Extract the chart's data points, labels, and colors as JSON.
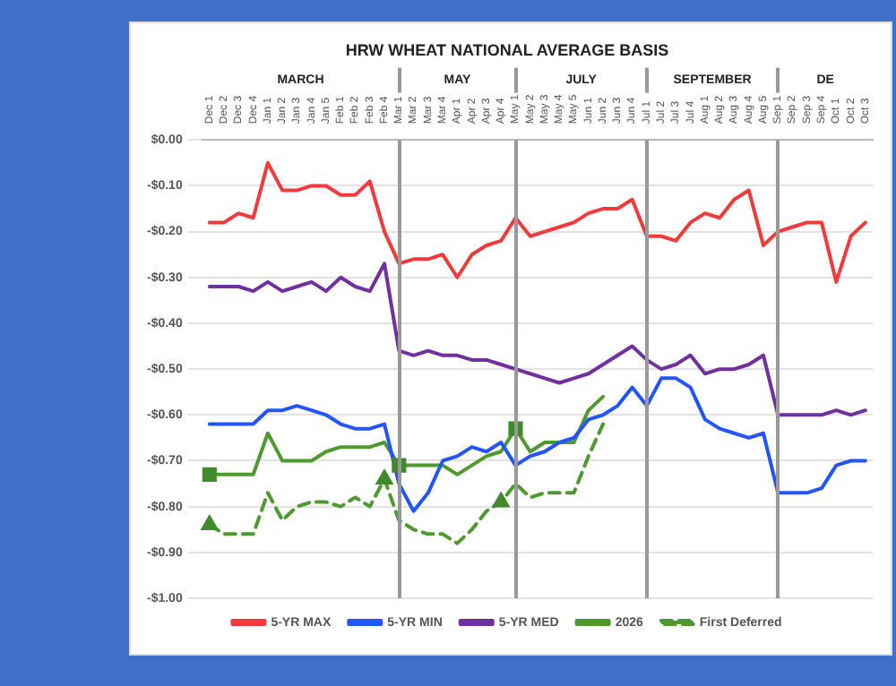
{
  "chart_data": {
    "type": "line",
    "title": "HRW WHEAT NATIONAL AVERAGE BASIS",
    "categories": [
      "Dec 1",
      "Dec 2",
      "Dec 3",
      "Dec 4",
      "Jan 1",
      "Jan 2",
      "Jan 3",
      "Jan 4",
      "Jan 5",
      "Feb 1",
      "Feb 2",
      "Feb 3",
      "Feb 4",
      "Mar 1",
      "Mar 2",
      "Mar 3",
      "Mar 4",
      "Apr 1",
      "Apr 2",
      "Apr 3",
      "Apr 4",
      "May 1",
      "May 2",
      "May 3",
      "May 4",
      "May 5",
      "Jun 1",
      "Jun 2",
      "Jun 3",
      "Jun 4",
      "Jul 1",
      "Jul 2",
      "Jul 3",
      "Jul 4",
      "Aug 1",
      "Aug 2",
      "Aug 3",
      "Aug 4",
      "Aug 5",
      "Sep 1",
      "Sep 2",
      "Sep 3",
      "Sep 4",
      "Oct 1",
      "Oct 2",
      "Oct 3"
    ],
    "series": [
      {
        "name": "5-YR MAX",
        "color": "#f23a3a",
        "values": [
          -0.18,
          -0.18,
          -0.16,
          -0.17,
          -0.05,
          -0.11,
          -0.11,
          -0.1,
          -0.1,
          -0.12,
          -0.12,
          -0.09,
          -0.2,
          -0.27,
          -0.26,
          -0.26,
          -0.25,
          -0.3,
          -0.25,
          -0.23,
          -0.22,
          -0.17,
          -0.21,
          -0.2,
          -0.19,
          -0.18,
          -0.16,
          -0.15,
          -0.15,
          -0.13,
          -0.21,
          -0.21,
          -0.22,
          -0.18,
          -0.16,
          -0.17,
          -0.13,
          -0.11,
          -0.23,
          -0.2,
          -0.19,
          -0.18,
          -0.18,
          -0.31,
          -0.21,
          -0.18
        ]
      },
      {
        "name": "5-YR MIN",
        "color": "#2255ff",
        "values": [
          -0.62,
          -0.62,
          -0.62,
          -0.62,
          -0.59,
          -0.59,
          -0.58,
          -0.59,
          -0.6,
          -0.62,
          -0.63,
          -0.63,
          -0.62,
          -0.75,
          -0.81,
          -0.77,
          -0.7,
          -0.69,
          -0.67,
          -0.68,
          -0.66,
          -0.71,
          -0.69,
          -0.68,
          -0.66,
          -0.65,
          -0.61,
          -0.6,
          -0.58,
          -0.54,
          -0.58,
          -0.52,
          -0.52,
          -0.54,
          -0.61,
          -0.63,
          -0.64,
          -0.65,
          -0.64,
          -0.77,
          -0.77,
          -0.77,
          -0.76,
          -0.71,
          -0.7,
          -0.7
        ]
      },
      {
        "name": "5-YR MED",
        "color": "#7030a0",
        "values": [
          -0.32,
          -0.32,
          -0.32,
          -0.33,
          -0.31,
          -0.33,
          -0.32,
          -0.31,
          -0.33,
          -0.3,
          -0.32,
          -0.33,
          -0.27,
          -0.46,
          -0.47,
          -0.46,
          -0.47,
          -0.47,
          -0.48,
          -0.48,
          -0.49,
          -0.5,
          -0.51,
          -0.52,
          -0.53,
          -0.52,
          -0.51,
          -0.49,
          -0.47,
          -0.45,
          -0.48,
          -0.5,
          -0.49,
          -0.47,
          -0.51,
          -0.5,
          -0.5,
          -0.49,
          -0.47,
          -0.6,
          -0.6,
          -0.6,
          -0.6,
          -0.59,
          -0.6,
          -0.59
        ]
      },
      {
        "name": "2026",
        "color": "#4e9a2e",
        "values": [
          -0.73,
          -0.73,
          -0.73,
          -0.73,
          -0.64,
          -0.7,
          -0.7,
          -0.7,
          -0.68,
          -0.67,
          -0.67,
          -0.67,
          -0.66,
          -0.71,
          -0.71,
          -0.71,
          -0.71,
          -0.73,
          -0.71,
          -0.69,
          -0.68,
          -0.63,
          -0.68,
          -0.66,
          -0.66,
          -0.66,
          -0.59,
          -0.56,
          null,
          null,
          null,
          null,
          null,
          null,
          null,
          null,
          null,
          null,
          null,
          null,
          null,
          null,
          null,
          null,
          null,
          null
        ]
      },
      {
        "name": "First Deferred",
        "color": "#4e9a2e",
        "line_style": "dashed",
        "values": [
          -0.84,
          -0.86,
          -0.86,
          -0.86,
          -0.77,
          -0.83,
          -0.8,
          -0.79,
          -0.79,
          -0.8,
          -0.78,
          -0.8,
          -0.74,
          -0.83,
          -0.85,
          -0.86,
          -0.86,
          -0.88,
          -0.85,
          -0.81,
          -0.79,
          -0.75,
          -0.78,
          -0.77,
          -0.77,
          -0.77,
          -0.69,
          -0.62,
          null,
          null,
          null,
          null,
          null,
          null,
          null,
          null,
          null,
          null,
          null,
          null,
          null,
          null,
          null,
          null,
          null,
          null
        ]
      },
      {
        "type": "scatter",
        "color": "#3f8a2c",
        "marker": "square",
        "x": [
          "Dec 1",
          "Mar 1",
          "May 1"
        ],
        "values": [
          -0.73,
          -0.71,
          -0.63
        ]
      },
      {
        "type": "scatter",
        "color": "#3f8a2c",
        "marker": "triangle",
        "x": [
          "Dec 1",
          "Feb 4",
          "Apr 4"
        ],
        "values": [
          -0.84,
          -0.74,
          -0.79
        ]
      }
    ],
    "ylim": [
      -1,
      0
    ],
    "yticks": [
      {
        "value": 0,
        "label": "$0.00"
      },
      {
        "value": -0.1,
        "label": "-$0.10"
      },
      {
        "value": -0.2,
        "label": "-$0.20"
      },
      {
        "value": -0.3,
        "label": "-$0.30"
      },
      {
        "value": -0.4,
        "label": "-$0.40"
      },
      {
        "value": -0.5,
        "label": "-$0.50"
      },
      {
        "value": -0.6,
        "label": "-$0.60"
      },
      {
        "value": -0.7,
        "label": "-$0.70"
      },
      {
        "value": -0.8,
        "label": "-$0.80"
      },
      {
        "value": -0.9,
        "label": "-$0.90"
      },
      {
        "value": -1,
        "label": "-$1.00"
      }
    ],
    "grid": "y",
    "legend": "bottom",
    "marker": "none",
    "ref_lines": [
      {
        "axis": "x",
        "value": "Mar 1",
        "color": "#999999"
      },
      {
        "axis": "x",
        "value": "May 1",
        "color": "#999999"
      },
      {
        "axis": "x",
        "value": "Jul 1",
        "color": "#999999"
      },
      {
        "axis": "x",
        "value": "Sep 1",
        "color": "#999999"
      }
    ],
    "annotations": [
      "MARCH",
      "MAY",
      "JULY",
      "SEPTEMBER",
      "DE"
    ]
  }
}
